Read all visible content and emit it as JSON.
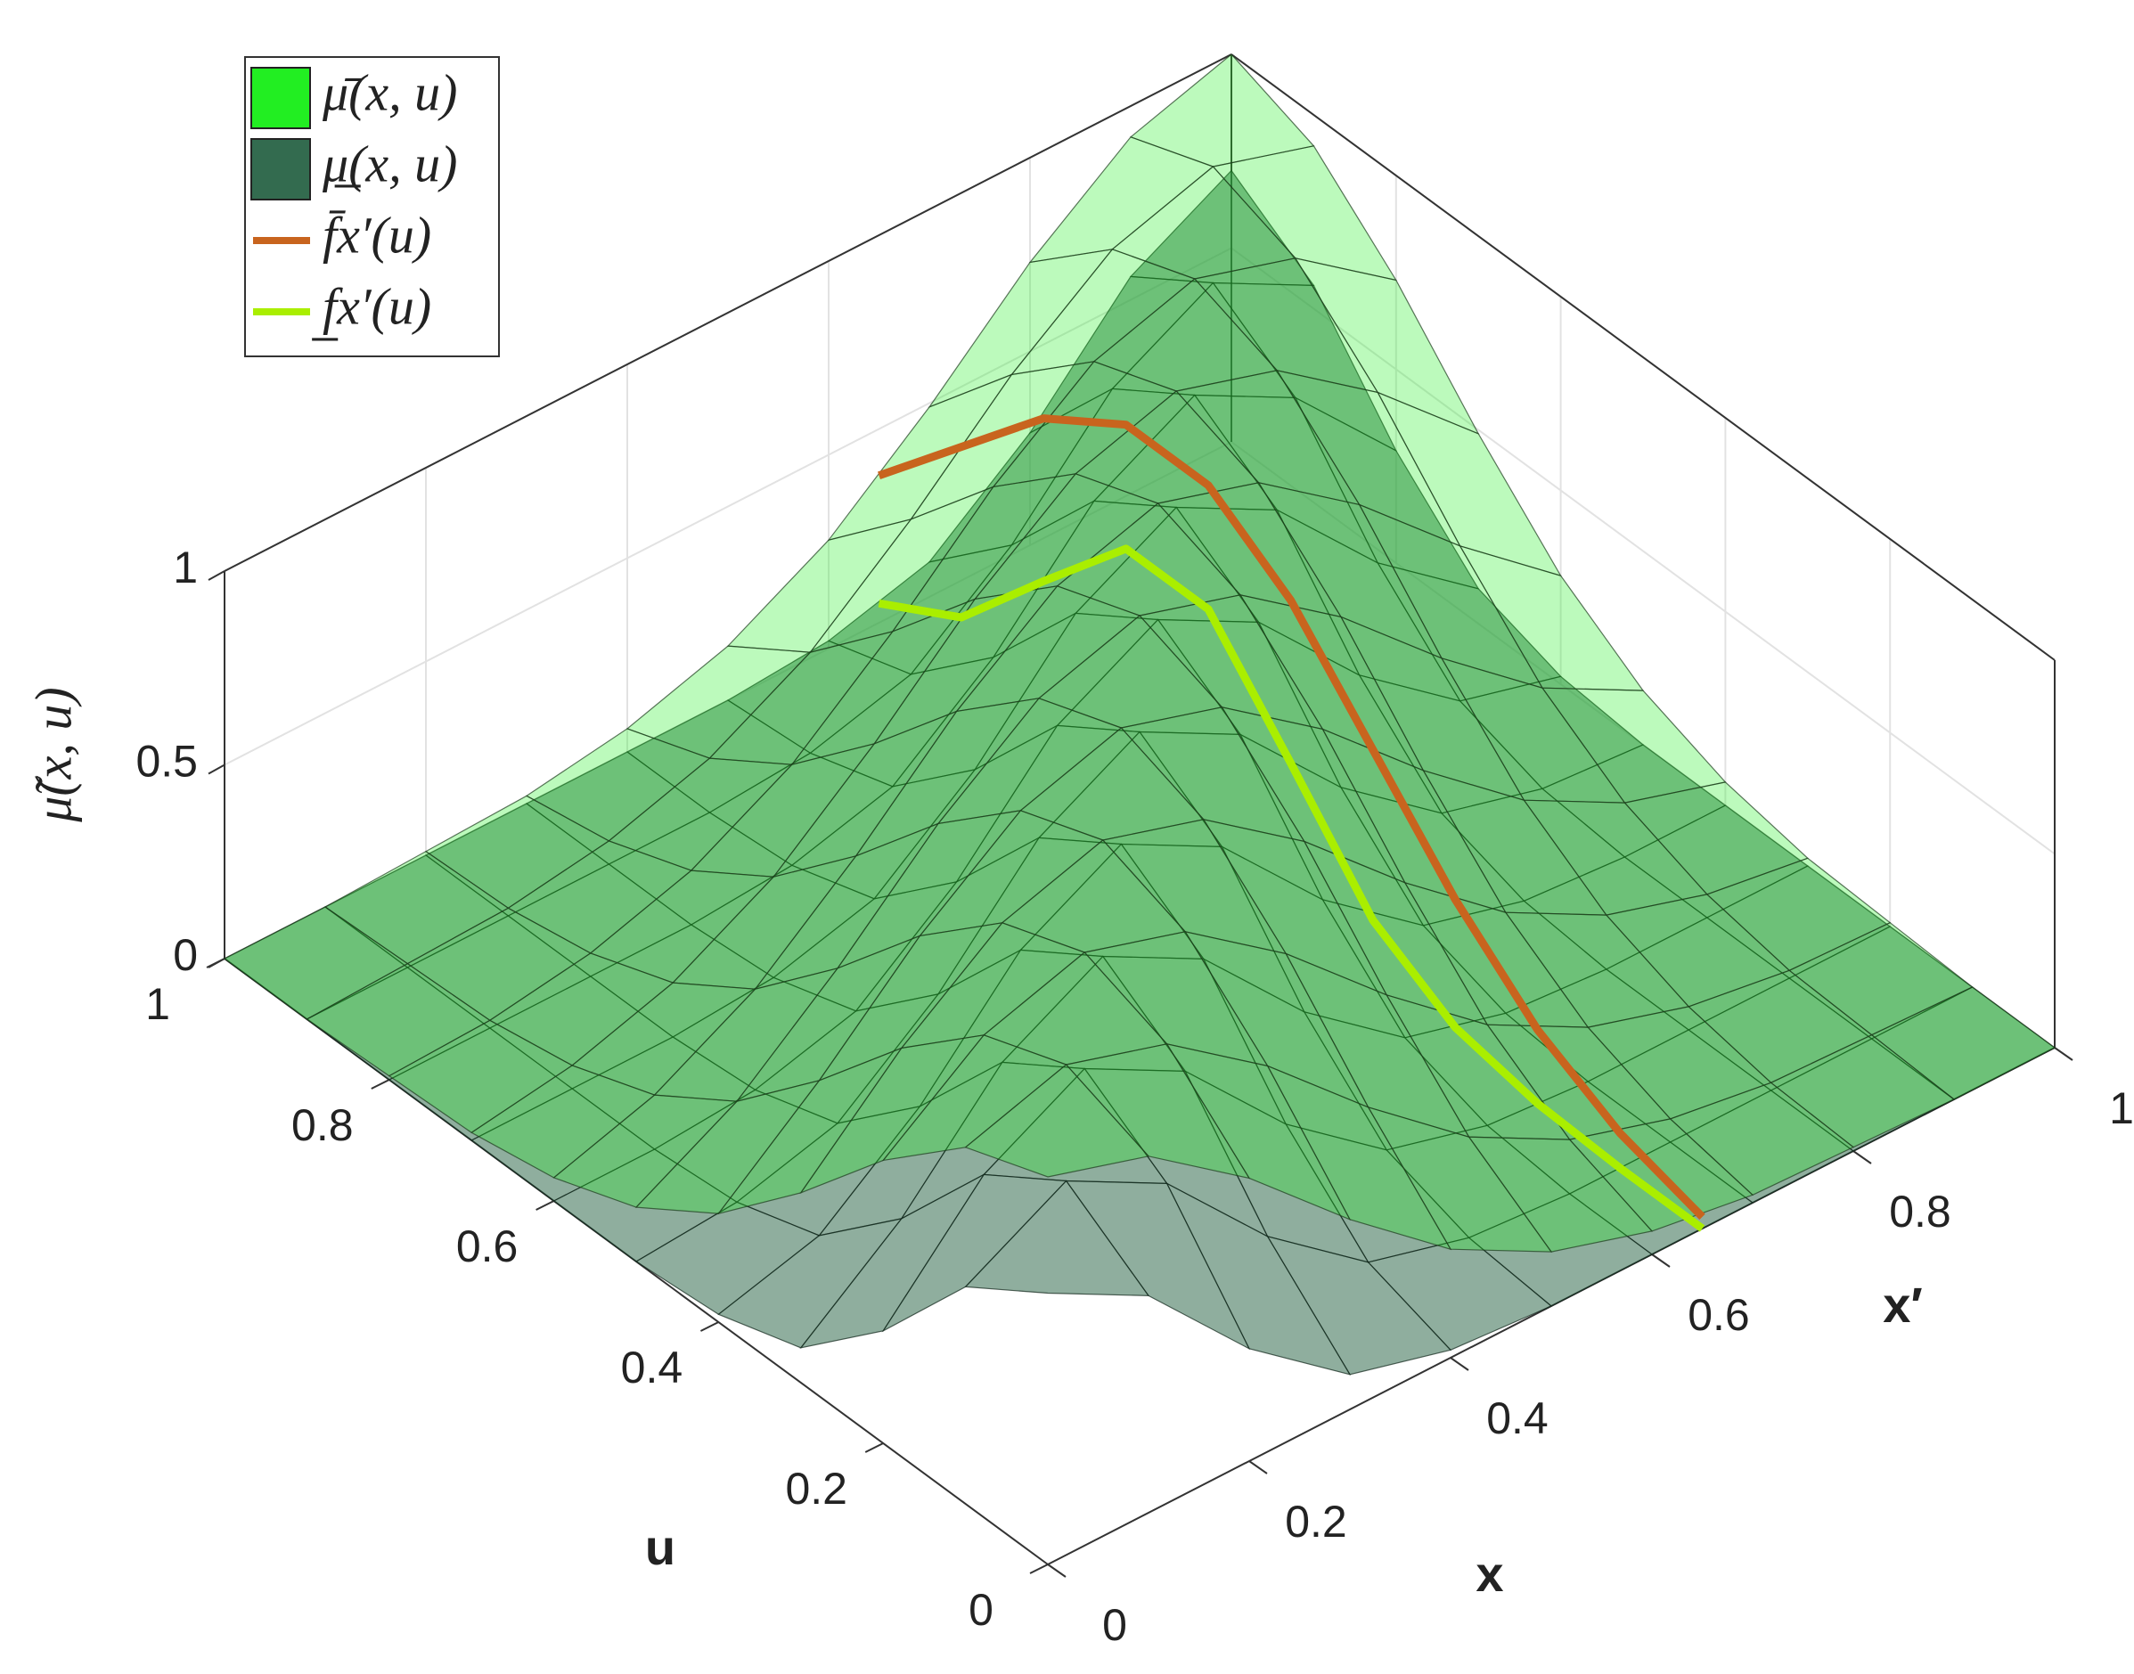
{
  "chart_data": {
    "type": "surface",
    "xlabel": "x",
    "ylabel": "u",
    "zlabel": "μ̃(x, u)",
    "slice_label": "x′",
    "xlim": [
      0,
      1
    ],
    "ylim": [
      0,
      1
    ],
    "zlim": [
      0,
      1
    ],
    "xticks": [
      0,
      0.2,
      0.4,
      0.6,
      0.8,
      1
    ],
    "yticks": [
      0,
      0.2,
      0.4,
      0.6,
      0.8,
      1
    ],
    "zticks": [
      0,
      0.5,
      1
    ],
    "grid": true,
    "legend": "northwest",
    "grid_x": [
      0,
      0.1,
      0.2,
      0.3,
      0.4,
      0.5,
      0.6,
      0.7,
      0.8,
      0.9,
      1
    ],
    "grid_u": [
      0,
      0.1,
      0.2,
      0.3,
      0.4,
      0.5,
      0.6,
      0.7,
      0.8,
      0.9,
      1
    ],
    "surfaces": [
      {
        "name": "μ̄(x, u)",
        "color": "#22ee22",
        "values": [
          [
            1,
            0.92,
            0.73,
            0.49,
            0.28,
            0.14,
            0.06,
            0.02,
            0.01,
            0,
            0
          ],
          [
            0.92,
            1,
            0.92,
            0.73,
            0.49,
            0.28,
            0.14,
            0.06,
            0.02,
            0.01,
            0
          ],
          [
            0.73,
            0.92,
            1,
            0.92,
            0.73,
            0.49,
            0.28,
            0.14,
            0.06,
            0.02,
            0.01
          ],
          [
            0.49,
            0.73,
            0.92,
            1,
            0.92,
            0.73,
            0.49,
            0.28,
            0.14,
            0.06,
            0.02
          ],
          [
            0.28,
            0.49,
            0.73,
            0.92,
            1,
            0.92,
            0.73,
            0.49,
            0.28,
            0.14,
            0.06
          ],
          [
            0.14,
            0.28,
            0.49,
            0.73,
            0.92,
            1,
            0.92,
            0.73,
            0.49,
            0.28,
            0.14
          ],
          [
            0.06,
            0.14,
            0.28,
            0.49,
            0.73,
            0.92,
            1,
            0.92,
            0.73,
            0.49,
            0.28
          ],
          [
            0.02,
            0.06,
            0.14,
            0.28,
            0.49,
            0.73,
            0.92,
            1,
            0.92,
            0.73,
            0.49
          ],
          [
            0.01,
            0.02,
            0.06,
            0.14,
            0.28,
            0.49,
            0.73,
            0.92,
            1,
            0.92,
            0.73
          ],
          [
            0,
            0.01,
            0.02,
            0.06,
            0.14,
            0.28,
            0.49,
            0.73,
            0.92,
            1,
            0.92
          ],
          [
            0,
            0,
            0.01,
            0.02,
            0.06,
            0.14,
            0.28,
            0.49,
            0.73,
            0.92,
            1
          ]
        ]
      },
      {
        "name": "μ̲(x, u)",
        "color": "#336b4f",
        "values": [
          [
            0.7,
            0.56,
            0.29,
            0.09,
            0.02,
            0,
            0,
            0,
            0,
            0,
            0
          ],
          [
            0.56,
            0.7,
            0.56,
            0.29,
            0.09,
            0.02,
            0,
            0,
            0,
            0,
            0
          ],
          [
            0.29,
            0.56,
            0.7,
            0.56,
            0.29,
            0.09,
            0.02,
            0,
            0,
            0,
            0
          ],
          [
            0.09,
            0.29,
            0.56,
            0.7,
            0.56,
            0.29,
            0.09,
            0.02,
            0,
            0,
            0
          ],
          [
            0.02,
            0.09,
            0.29,
            0.56,
            0.7,
            0.56,
            0.29,
            0.09,
            0.02,
            0,
            0
          ],
          [
            0,
            0.02,
            0.09,
            0.29,
            0.56,
            0.7,
            0.56,
            0.29,
            0.09,
            0.02,
            0
          ],
          [
            0,
            0,
            0.02,
            0.09,
            0.29,
            0.56,
            0.7,
            0.56,
            0.29,
            0.09,
            0.02
          ],
          [
            0,
            0,
            0,
            0.02,
            0.09,
            0.29,
            0.56,
            0.7,
            0.56,
            0.29,
            0.09
          ],
          [
            0,
            0,
            0,
            0,
            0.02,
            0.09,
            0.29,
            0.56,
            0.7,
            0.56,
            0.29
          ],
          [
            0,
            0,
            0,
            0,
            0,
            0.02,
            0.09,
            0.29,
            0.56,
            0.7,
            0.56
          ],
          [
            0,
            0,
            0,
            0,
            0,
            0,
            0.02,
            0.09,
            0.29,
            0.56,
            0.7
          ]
        ]
      }
    ],
    "slice": {
      "x": 0.65,
      "u": [
        0,
        0.1,
        0.2,
        0.3,
        0.4,
        0.5,
        0.6,
        0.7,
        0.8,
        0.9,
        1
      ],
      "series": [
        {
          "name": "f̄x′(u)",
          "color": "#c8641e",
          "values": [
            0.03,
            0.09,
            0.2,
            0.38,
            0.61,
            0.84,
            0.98,
            0.98,
            0.84,
            0.61,
            0.38
          ]
        },
        {
          "name": "f̲x′(u)",
          "color": "#aaee00",
          "values": [
            0,
            0,
            0.01,
            0.05,
            0.17,
            0.42,
            0.66,
            0.66,
            0.42,
            0.17,
            0.05
          ]
        }
      ]
    }
  }
}
